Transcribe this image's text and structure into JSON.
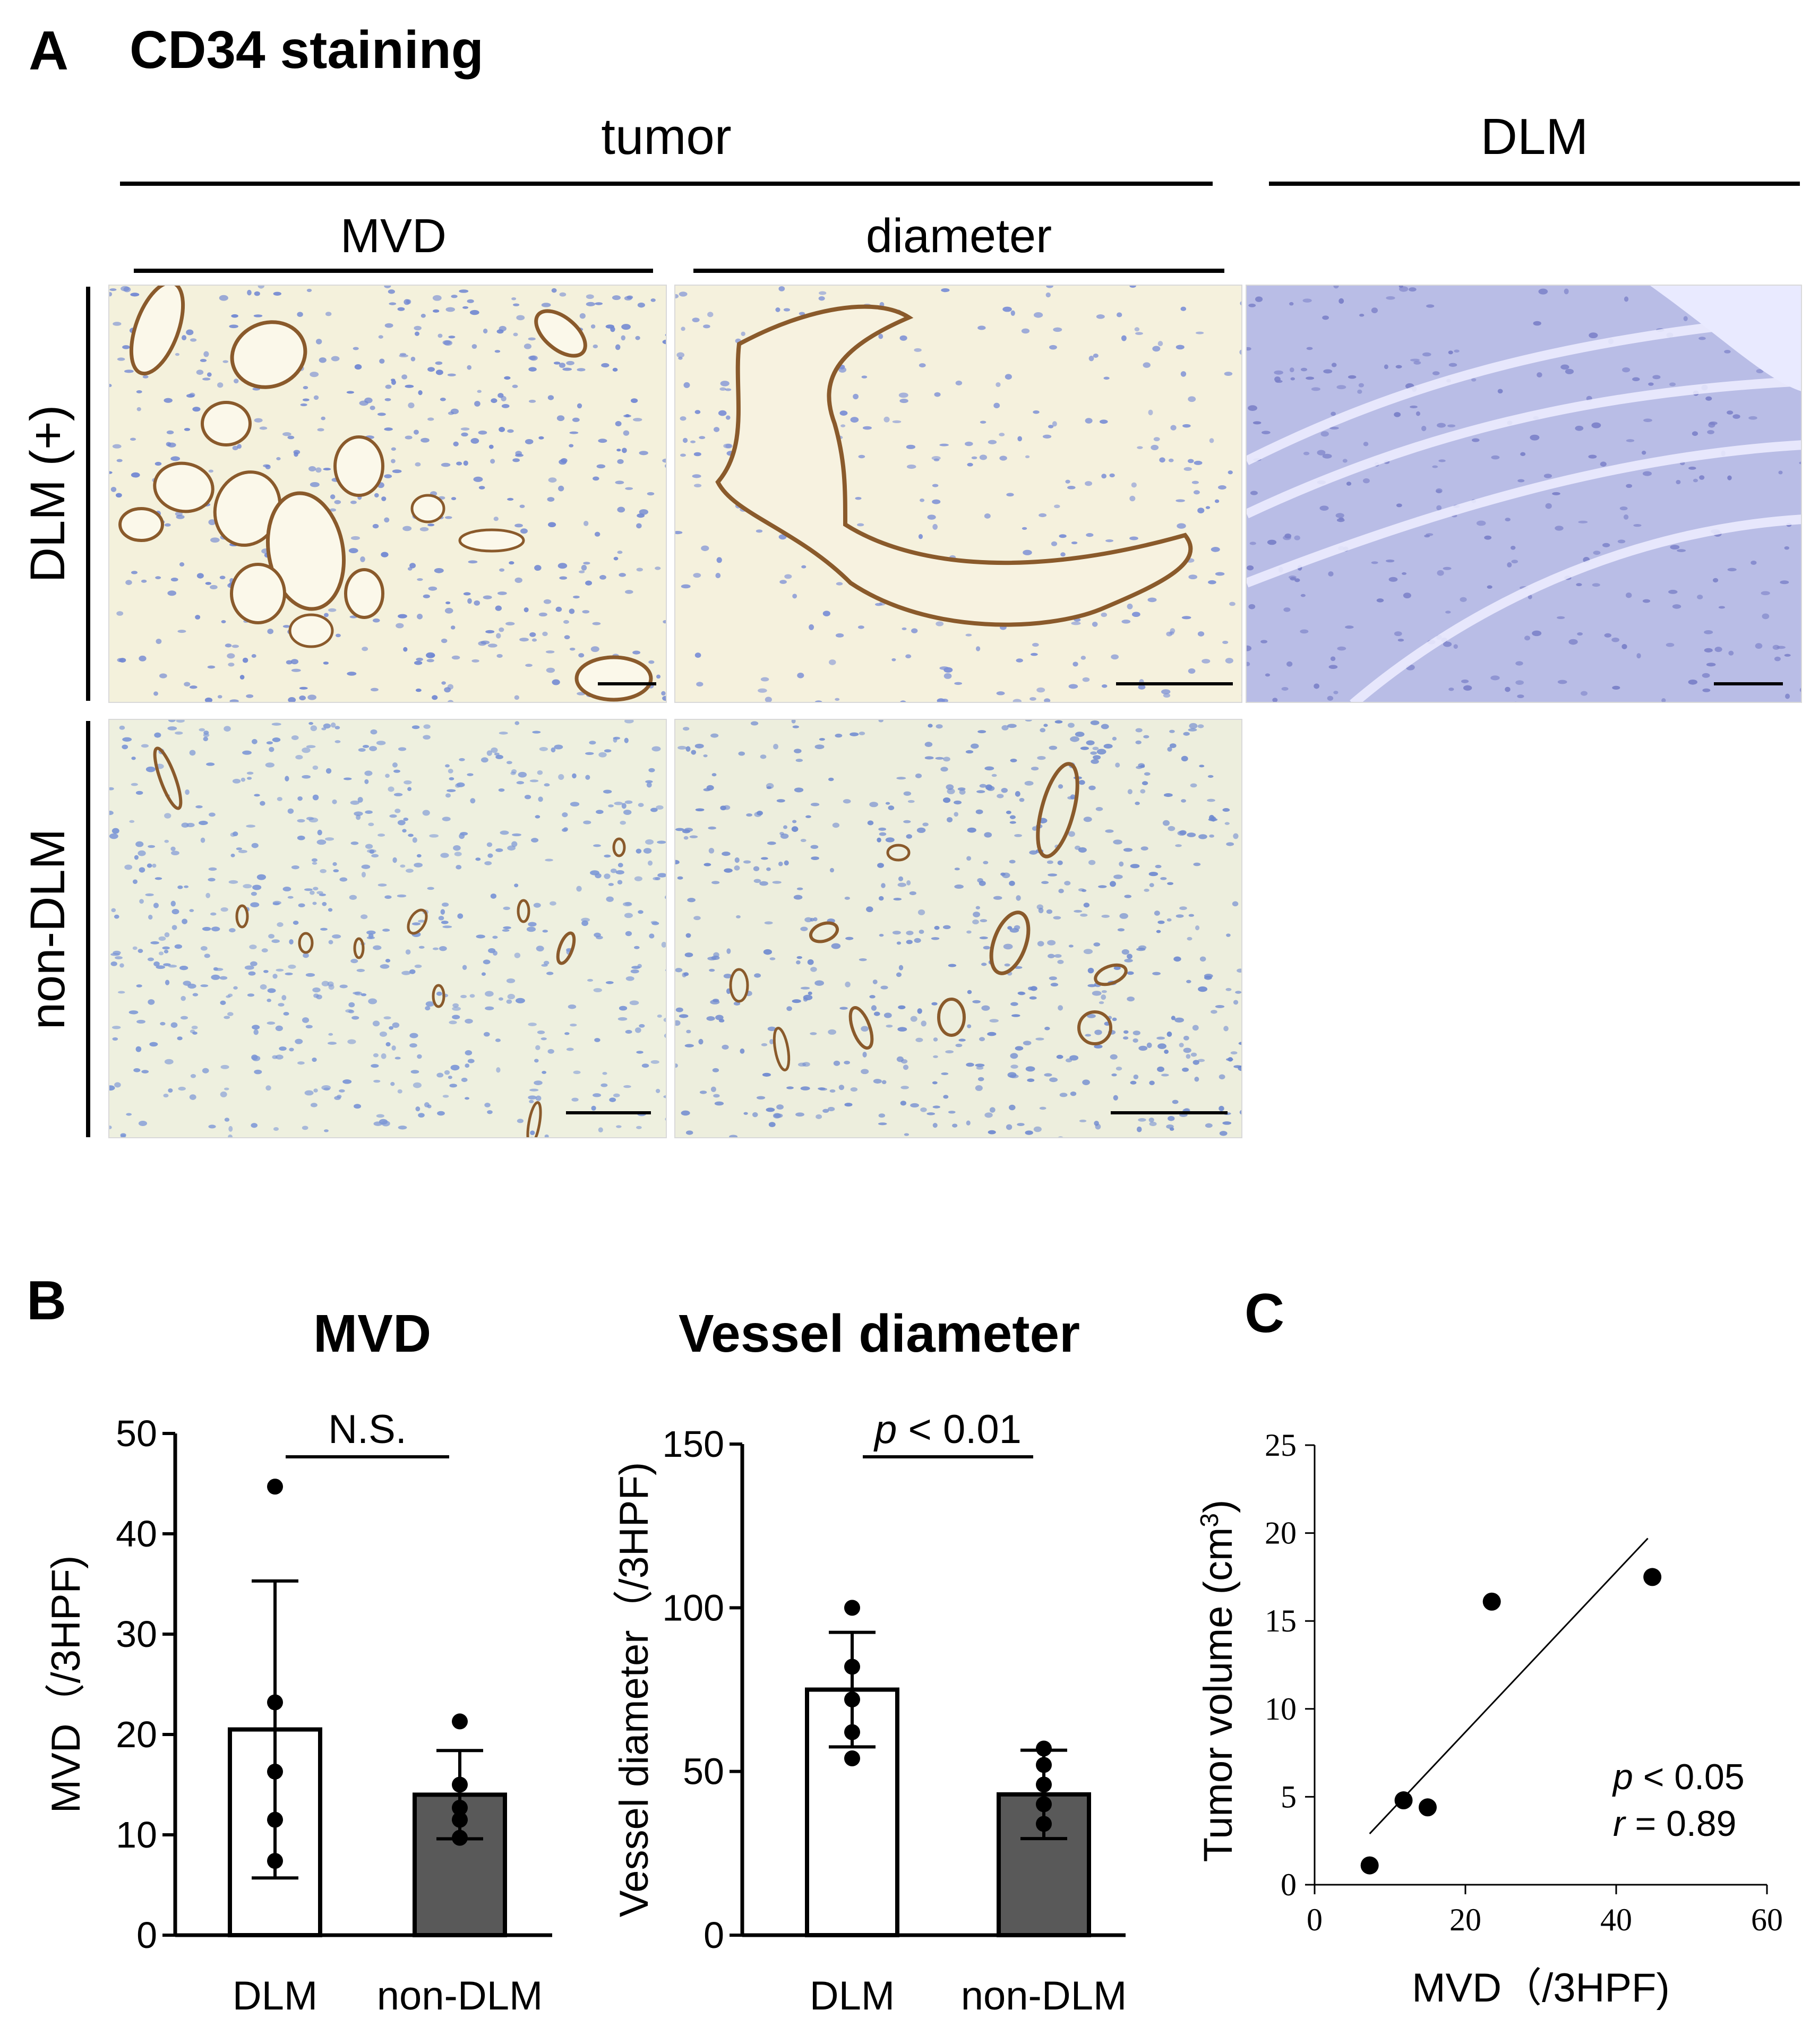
{
  "panel_a": {
    "letter": "A",
    "title": "CD34 staining",
    "group_tumor": "tumor",
    "group_dlm": "DLM",
    "col_mvd": "MVD",
    "col_diameter": "diameter",
    "row_dlm_plus": "DLM (+)",
    "row_non_dlm": "non-DLM"
  },
  "panel_b": {
    "letter": "B"
  },
  "panel_c": {
    "letter": "C"
  },
  "colors": {
    "white_bar": "#ffffff",
    "grey_bar": "#595959",
    "stain_brown": "#8a5a2b",
    "nuclei_blue": "#7b8fd6",
    "background_stain": "#f3f0dc",
    "dlm_tissue": "#b9bde6"
  },
  "chart_data": [
    {
      "id": "mvd",
      "type": "bar",
      "title": "MVD",
      "ylabel": "MVD（/3HPF)",
      "xlabel": "",
      "categories": [
        "DLM",
        "non-DLM"
      ],
      "values": [
        20.5,
        14
      ],
      "error": [
        14.8,
        4.4
      ],
      "points": [
        [
          44.7,
          23.2,
          16.3,
          11.5,
          7.4
        ],
        [
          21.3,
          15,
          12.7,
          11.5,
          9.7
        ]
      ],
      "ylim": [
        0,
        50
      ],
      "yticks": [
        0,
        10,
        20,
        30,
        40,
        50
      ],
      "annotation": "N.S.",
      "grid": false
    },
    {
      "id": "vessel",
      "type": "bar",
      "title": "Vessel diameter",
      "ylabel": "Vessel diameter（/3HPF)",
      "xlabel": "",
      "categories": [
        "DLM",
        "non-DLM"
      ],
      "values": [
        75,
        43
      ],
      "error": [
        17.5,
        13.5
      ],
      "points": [
        [
          100,
          82,
          72,
          62,
          54
        ],
        [
          57,
          52,
          46,
          40,
          34
        ]
      ],
      "ylim": [
        0,
        150
      ],
      "yticks": [
        0,
        50,
        100,
        150
      ],
      "annotation_p": "p",
      "annotation_rest": " < 0.01",
      "grid": false
    },
    {
      "id": "scatter",
      "type": "scatter",
      "title": "",
      "xlabel": "MVD（/3HPF)",
      "ylabel_main": "Tumor volume (cm",
      "ylabel_sup": "3",
      "ylabel_end": ")",
      "points": [
        [
          7.3,
          1.1
        ],
        [
          11.8,
          4.8
        ],
        [
          15,
          4.4
        ],
        [
          23.5,
          16.1
        ],
        [
          44.8,
          17.5
        ]
      ],
      "fit_line": [
        [
          7.3,
          2.9
        ],
        [
          44.2,
          19.7
        ]
      ],
      "xlim": [
        0,
        60
      ],
      "ylim": [
        0,
        25
      ],
      "xticks": [
        0,
        20,
        40,
        60
      ],
      "yticks": [
        0,
        5,
        10,
        15,
        20,
        25
      ],
      "p_label": "p",
      "p_rest": " < 0.05",
      "r_label": "r",
      "r_rest": " = 0.89",
      "grid": false
    }
  ]
}
